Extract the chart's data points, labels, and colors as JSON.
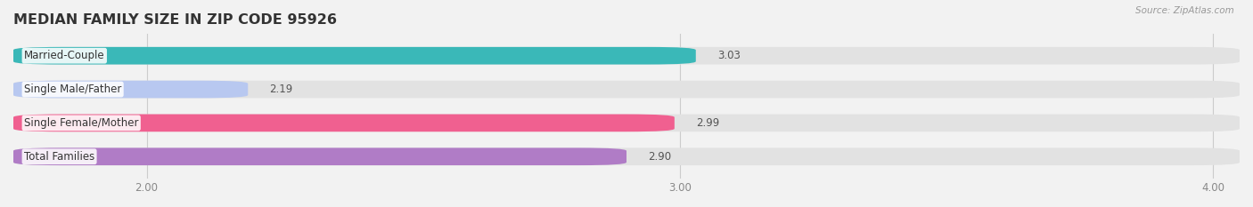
{
  "title": "MEDIAN FAMILY SIZE IN ZIP CODE 95926",
  "source": "Source: ZipAtlas.com",
  "categories": [
    "Married-Couple",
    "Single Male/Father",
    "Single Female/Mother",
    "Total Families"
  ],
  "values": [
    3.03,
    2.19,
    2.99,
    2.9
  ],
  "colors": [
    "#3ab8b8",
    "#b8c8f0",
    "#f06090",
    "#b07cc6"
  ],
  "xlim": [
    1.75,
    4.05
  ],
  "xticks": [
    2.0,
    3.0,
    4.0
  ],
  "bar_height": 0.52,
  "background_color": "#f2f2f2",
  "bar_bg_color": "#e2e2e2",
  "label_fontsize": 8.5,
  "value_fontsize": 8.5,
  "title_fontsize": 11.5
}
